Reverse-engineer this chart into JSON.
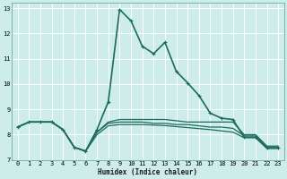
{
  "xlabel": "Humidex (Indice chaleur)",
  "xlim": [
    -0.5,
    23.5
  ],
  "ylim": [
    7,
    13.2
  ],
  "yticks": [
    7,
    8,
    9,
    10,
    11,
    12,
    13
  ],
  "xticks": [
    0,
    1,
    2,
    3,
    4,
    5,
    6,
    7,
    8,
    9,
    10,
    11,
    12,
    13,
    14,
    15,
    16,
    17,
    18,
    19,
    20,
    21,
    22,
    23
  ],
  "background_color": "#ceecea",
  "grid_color": "#ffffff",
  "line_color": "#1b6b5e",
  "series": [
    {
      "x": [
        0,
        1,
        2,
        3,
        4,
        5,
        6,
        7,
        8,
        9,
        10,
        11,
        12,
        13,
        14,
        15,
        16,
        17,
        18,
        19,
        20,
        21,
        22,
        23
      ],
      "y": [
        8.3,
        8.5,
        8.5,
        8.5,
        8.2,
        7.5,
        7.35,
        8.2,
        9.3,
        12.95,
        12.5,
        11.5,
        11.2,
        11.65,
        10.5,
        10.05,
        9.55,
        8.85,
        8.65,
        8.6,
        7.9,
        7.9,
        7.5,
        7.5
      ],
      "markers": true,
      "linewidth": 1.2
    },
    {
      "x": [
        0,
        1,
        2,
        3,
        4,
        5,
        6,
        7,
        8,
        9,
        10,
        11,
        12,
        13,
        14,
        15,
        16,
        17,
        18,
        19,
        20,
        21,
        22,
        23
      ],
      "y": [
        8.3,
        8.5,
        8.5,
        8.5,
        8.2,
        7.5,
        7.35,
        8.1,
        8.5,
        8.6,
        8.6,
        8.6,
        8.6,
        8.6,
        8.55,
        8.5,
        8.5,
        8.5,
        8.5,
        8.5,
        8.0,
        8.0,
        7.55,
        7.55
      ],
      "markers": false,
      "linewidth": 0.9
    },
    {
      "x": [
        0,
        1,
        2,
        3,
        4,
        5,
        6,
        7,
        8,
        9,
        10,
        11,
        12,
        13,
        14,
        15,
        16,
        17,
        18,
        19,
        20,
        21,
        22,
        23
      ],
      "y": [
        8.3,
        8.5,
        8.5,
        8.5,
        8.2,
        7.5,
        7.35,
        8.1,
        8.45,
        8.5,
        8.5,
        8.5,
        8.45,
        8.45,
        8.4,
        8.4,
        8.35,
        8.3,
        8.3,
        8.25,
        7.95,
        7.95,
        7.5,
        7.5
      ],
      "markers": false,
      "linewidth": 0.9
    },
    {
      "x": [
        0,
        1,
        2,
        3,
        4,
        5,
        6,
        7,
        8,
        9,
        10,
        11,
        12,
        13,
        14,
        15,
        16,
        17,
        18,
        19,
        20,
        21,
        22,
        23
      ],
      "y": [
        8.3,
        8.5,
        8.5,
        8.5,
        8.2,
        7.5,
        7.35,
        8.0,
        8.35,
        8.4,
        8.4,
        8.4,
        8.38,
        8.36,
        8.32,
        8.28,
        8.24,
        8.2,
        8.15,
        8.1,
        7.88,
        7.88,
        7.45,
        7.45
      ],
      "markers": false,
      "linewidth": 0.9
    }
  ]
}
